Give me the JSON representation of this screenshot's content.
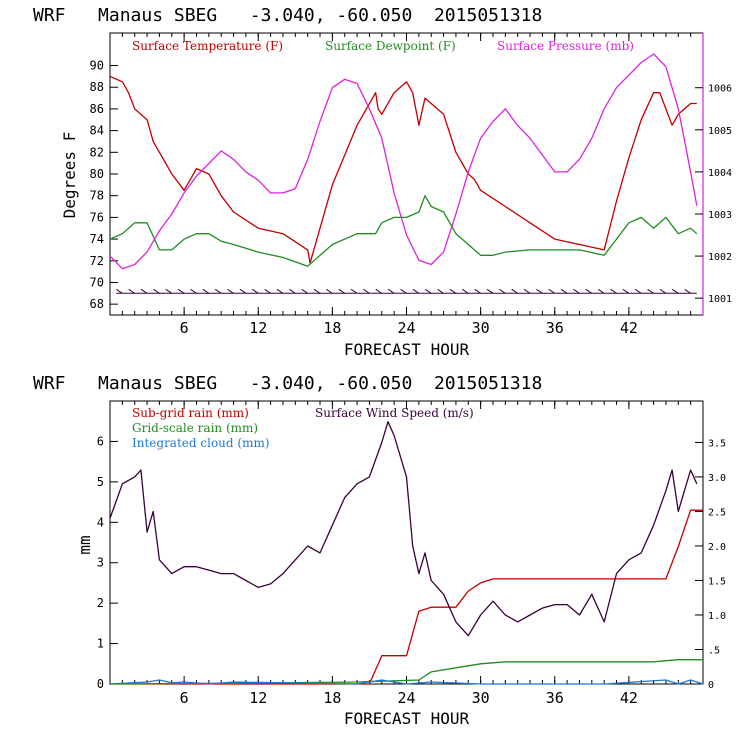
{
  "chart_data": [
    {
      "type": "line",
      "title": "WRF   Manaus SBEG   -3.040, -60.050  2015051318",
      "xlabel": "FORECAST HOUR",
      "ylabel": "Degrees F",
      "xlim": [
        0,
        48
      ],
      "ylim": [
        67,
        93
      ],
      "y2lim": [
        1000.6,
        1007.3
      ],
      "xticks": [
        "6",
        "12",
        "18",
        "24",
        "30",
        "36",
        "42"
      ],
      "yticks": [
        "68",
        "70",
        "72",
        "74",
        "76",
        "78",
        "80",
        "82",
        "84",
        "86",
        "88",
        "90"
      ],
      "y2ticks": [
        "1001",
        "1002",
        "1003",
        "1004",
        "1005",
        "1006"
      ],
      "series": [
        {
          "name": "Surface Temperature (F)",
          "color": "#c00000",
          "axis": "left",
          "x": [
            0,
            1,
            1.5,
            2,
            3,
            3.5,
            4,
            5,
            6,
            7,
            8,
            9,
            10,
            12,
            14,
            16,
            16.2,
            18,
            20,
            21.5,
            21.7,
            22,
            23,
            24,
            24.5,
            25,
            25.5,
            26,
            27,
            28,
            29,
            29.5,
            30,
            32,
            34,
            36,
            38,
            40,
            41,
            42,
            43,
            44,
            44.5,
            45,
            45.5,
            46,
            47,
            47.5
          ],
          "y": [
            89,
            88.5,
            87.5,
            86,
            85,
            83,
            82,
            80,
            78.5,
            80.5,
            80,
            78,
            76.5,
            75,
            74.5,
            73,
            71.8,
            79,
            84.5,
            87.5,
            86,
            85.5,
            87.5,
            88.5,
            87.5,
            84.5,
            87,
            86.5,
            85.5,
            82,
            80,
            79.5,
            78.5,
            77,
            75.5,
            74,
            73.5,
            73,
            77.5,
            81.5,
            85,
            87.5,
            87.5,
            86,
            84.5,
            85.5,
            86.5,
            86.5
          ]
        },
        {
          "name": "Surface Dewpoint (F)",
          "color": "#228b22",
          "axis": "left",
          "x": [
            0,
            1,
            2,
            3,
            4,
            5,
            6,
            7,
            8,
            9,
            10,
            12,
            14,
            16,
            17,
            18,
            20,
            21.5,
            22,
            23,
            24,
            25,
            25.5,
            26,
            27,
            28,
            29,
            30,
            31,
            32,
            34,
            36,
            38,
            40,
            41,
            42,
            43,
            44,
            45,
            46,
            47,
            47.5
          ],
          "y": [
            74,
            74.5,
            75.5,
            75.5,
            73,
            73,
            74,
            74.5,
            74.5,
            73.8,
            73.5,
            72.8,
            72.3,
            71.5,
            72.5,
            73.5,
            74.5,
            74.5,
            75.5,
            76,
            76,
            76.5,
            78,
            77,
            76.5,
            74.5,
            73.5,
            72.5,
            72.5,
            72.8,
            73,
            73,
            73,
            72.5,
            74,
            75.5,
            76,
            75,
            76,
            74.5,
            75,
            74.5
          ]
        },
        {
          "name": "Surface Pressure (mb)",
          "color": "#dd22dd",
          "axis": "right",
          "x": [
            0,
            1,
            2,
            3,
            4,
            5,
            6,
            7,
            8,
            9,
            10,
            11,
            12,
            13,
            14,
            15,
            16,
            17,
            18,
            19,
            20,
            21,
            22,
            23,
            24,
            25,
            26,
            27,
            28,
            29,
            30,
            31,
            32,
            33,
            34,
            35,
            36,
            37,
            38,
            39,
            40,
            41,
            42,
            43,
            44,
            45,
            46,
            47,
            47.5
          ],
          "y": [
            1002.0,
            1001.7,
            1001.8,
            1002.1,
            1002.6,
            1003.0,
            1003.5,
            1003.9,
            1004.2,
            1004.5,
            1004.3,
            1004.0,
            1003.8,
            1003.5,
            1003.5,
            1003.6,
            1004.3,
            1005.2,
            1006.0,
            1006.2,
            1006.1,
            1005.5,
            1004.8,
            1003.5,
            1002.5,
            1001.9,
            1001.8,
            1002.1,
            1003.0,
            1004.0,
            1004.8,
            1005.2,
            1005.5,
            1005.1,
            1004.8,
            1004.4,
            1004.0,
            1004.0,
            1004.3,
            1004.8,
            1005.5,
            1006.0,
            1006.3,
            1006.6,
            1006.8,
            1006.5,
            1005.5,
            1004.0,
            1003.2
          ]
        }
      ],
      "wind_barbs": true,
      "grid": false
    },
    {
      "type": "line",
      "title": "WRF   Manaus SBEG   -3.040, -60.050  2015051318",
      "xlabel": "FORECAST HOUR",
      "ylabel": "mm",
      "xlim": [
        0,
        48
      ],
      "ylim": [
        0,
        7
      ],
      "y2lim": [
        0,
        4.1
      ],
      "xticks": [
        "6",
        "12",
        "18",
        "24",
        "30",
        "36",
        "42"
      ],
      "yticks": [
        "0",
        "1",
        "2",
        "3",
        "4",
        "5",
        "6"
      ],
      "y2ticks": [
        "0",
        ".5",
        "1.0",
        "1.5",
        "2.0",
        "2.5",
        "3.0",
        "3.5"
      ],
      "series": [
        {
          "name": "Sub-grid rain (mm)",
          "color": "#c00000",
          "axis": "left",
          "x": [
            0,
            21,
            22,
            23,
            24,
            25,
            26,
            28,
            29,
            30,
            31,
            32,
            34,
            36,
            38,
            40,
            42,
            44,
            45,
            46,
            47,
            48
          ],
          "y": [
            0,
            0,
            0.7,
            0.7,
            0.7,
            1.8,
            1.9,
            1.9,
            2.3,
            2.5,
            2.6,
            2.6,
            2.6,
            2.6,
            2.6,
            2.6,
            2.6,
            2.6,
            2.6,
            3.4,
            4.3,
            4.3
          ]
        },
        {
          "name": "Grid-scale rain (mm)",
          "color": "#228b22",
          "axis": "left",
          "x": [
            0,
            10,
            20,
            25,
            26,
            28,
            30,
            32,
            36,
            40,
            44,
            46,
            48
          ],
          "y": [
            0,
            0.02,
            0.05,
            0.1,
            0.3,
            0.4,
            0.5,
            0.55,
            0.55,
            0.55,
            0.55,
            0.6,
            0.6
          ]
        },
        {
          "name": "Integrated cloud (mm)",
          "color": "#1e78d6",
          "axis": "left",
          "x": [
            0,
            3,
            4,
            5,
            6,
            8,
            10,
            20,
            22,
            24,
            26,
            30,
            40,
            45,
            46,
            47,
            48
          ],
          "y": [
            0,
            0.05,
            0.1,
            0.03,
            0.05,
            0.0,
            0.05,
            0.0,
            0.1,
            0.0,
            0.05,
            0.0,
            0.0,
            0.1,
            0.0,
            0.1,
            0.0
          ]
        },
        {
          "name": "Surface Wind Speed (m/s)",
          "color": "#3a003a",
          "axis": "right",
          "x": [
            0,
            1,
            2,
            2.5,
            3,
            3.5,
            4,
            5,
            6,
            7,
            8,
            9,
            10,
            11,
            12,
            13,
            14,
            15,
            16,
            17,
            18,
            19,
            20,
            21,
            22,
            22.5,
            23,
            24,
            24.5,
            25,
            25.5,
            26,
            27,
            28,
            28.5,
            29,
            30,
            31,
            32,
            33,
            34,
            35,
            36,
            37,
            38,
            39,
            40,
            41,
            42,
            43,
            44,
            45,
            45.5,
            46,
            47,
            47.5
          ],
          "y": [
            2.4,
            2.9,
            3.0,
            3.1,
            2.2,
            2.5,
            1.8,
            1.6,
            1.7,
            1.7,
            1.65,
            1.6,
            1.6,
            1.5,
            1.4,
            1.45,
            1.6,
            1.8,
            2.0,
            1.9,
            2.3,
            2.7,
            2.9,
            3.0,
            3.5,
            3.8,
            3.6,
            3.0,
            2.0,
            1.6,
            1.9,
            1.5,
            1.3,
            0.9,
            0.8,
            0.7,
            1.0,
            1.2,
            1.0,
            0.9,
            1.0,
            1.1,
            1.15,
            1.15,
            1.0,
            1.3,
            0.9,
            1.6,
            1.8,
            1.9,
            2.3,
            2.8,
            3.1,
            2.5,
            3.1,
            2.9
          ]
        }
      ],
      "grid": false
    }
  ]
}
